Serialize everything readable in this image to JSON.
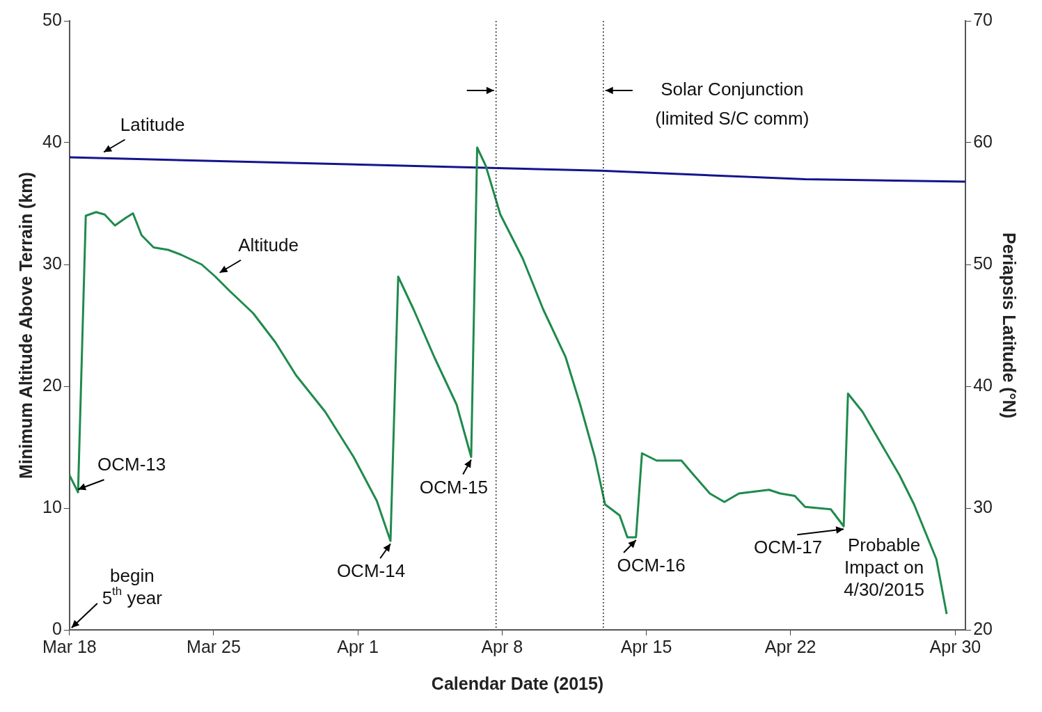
{
  "chart_data": {
    "type": "line",
    "xlabel": "Calendar Date (2015)",
    "ylabel": "Minimum Altitude Above Terrain (km)",
    "y2label": "Periapsis Latitude (°N)",
    "xlim": [
      "2015-03-18",
      "2015-04-30T12:00"
    ],
    "xticks": [
      {
        "value": "2015-03-18",
        "label": "Mar 18"
      },
      {
        "value": "2015-03-25",
        "label": "Mar 25"
      },
      {
        "value": "2015-04-01",
        "label": "Apr 1"
      },
      {
        "value": "2015-04-08",
        "label": "Apr 8"
      },
      {
        "value": "2015-04-15",
        "label": "Apr 15"
      },
      {
        "value": "2015-04-22",
        "label": "Apr 22"
      },
      {
        "value": "2015-04-30",
        "label": "Apr 30"
      }
    ],
    "ylim": [
      0,
      50
    ],
    "yticks": [
      0,
      10,
      20,
      30,
      40,
      50
    ],
    "y2lim": [
      20,
      70
    ],
    "y2ticks": [
      20,
      30,
      40,
      50,
      60,
      70
    ],
    "grid": false,
    "legend": false,
    "marker": "none",
    "line_style": "solid",
    "series": [
      {
        "color": "#1f8a4c",
        "x": [
          "2015-03-18T00:00",
          "2015-03-18T10:00",
          "2015-03-18T19:00",
          "2015-03-19T07:00",
          "2015-03-19T17:00",
          "2015-03-20T05:00",
          "2015-03-20T17:00",
          "2015-03-21T02:00",
          "2015-03-21T12:00",
          "2015-03-22T02:00",
          "2015-03-22T19:00",
          "2015-03-23T10:00",
          "2015-03-24T10:00",
          "2015-03-25T02:00",
          "2015-03-25T19:00",
          "2015-03-26T22:00",
          "2015-03-28T00:00",
          "2015-03-29T00:00",
          "2015-03-30T10:00",
          "2015-03-31T19:00",
          "2015-04-01T22:00",
          "2015-04-02T14:00",
          "2015-04-02T23:00",
          "2015-04-03T17:00",
          "2015-04-04T17:00",
          "2015-04-05T19:00",
          "2015-04-06T12:00",
          "2015-04-06T19:00",
          "2015-04-07T05:00",
          "2015-04-07T22:00",
          "2015-04-09T00:00",
          "2015-04-10T00:00",
          "2015-04-11T02:00",
          "2015-04-11T19:00",
          "2015-04-12T12:00",
          "2015-04-13T00:00",
          "2015-04-13T17:00",
          "2015-04-14T02:00",
          "2015-04-14T12:00",
          "2015-04-14T19:00",
          "2015-04-15T12:00",
          "2015-04-16T17:00",
          "2015-04-17T05:00",
          "2015-04-18T02:00",
          "2015-04-18T19:00",
          "2015-04-19T12:00",
          "2015-04-20T23:00",
          "2015-04-21T12:00",
          "2015-04-22T05:00",
          "2015-04-22T17:00",
          "2015-04-23T23:00",
          "2015-04-24T14:00",
          "2015-04-24T19:00",
          "2015-04-25T12:00",
          "2015-04-26T07:00",
          "2015-04-27T07:00",
          "2015-04-28T00:00",
          "2015-04-29T02:00",
          "2015-04-29T14:00"
        ],
        "values": [
          12.7,
          11.3,
          34.0,
          34.3,
          34.1,
          33.2,
          33.8,
          34.2,
          32.4,
          31.4,
          31.2,
          30.8,
          30.0,
          29.0,
          27.8,
          26.0,
          23.6,
          20.9,
          17.9,
          14.2,
          10.6,
          7.3,
          29.0,
          26.3,
          22.4,
          18.5,
          14.2,
          39.6,
          38.1,
          34.1,
          30.5,
          26.3,
          22.4,
          18.5,
          14.2,
          10.3,
          9.4,
          7.6,
          7.6,
          14.5,
          13.9,
          13.9,
          12.9,
          11.2,
          10.5,
          11.2,
          11.5,
          11.2,
          11.0,
          10.1,
          9.9,
          8.5,
          19.4,
          17.9,
          15.6,
          12.7,
          10.3,
          5.8,
          1.3
        ]
      },
      {
        "color": "#14148c",
        "axis": "y2",
        "x": [
          "2015-03-18T00:00",
          "2015-04-12T19:00",
          "2015-04-22T17:00",
          "2015-04-30T12:00"
        ],
        "values": [
          58.8,
          57.7,
          57.0,
          56.8
        ]
      }
    ],
    "ref_lines": [
      {
        "axis": "x",
        "value": "2015-04-07T17:00",
        "line_style": "dotted"
      },
      {
        "axis": "x",
        "value": "2015-04-12T22:00",
        "label": "Solar Conjunction (limited S/C comm)",
        "line_style": "dotted"
      }
    ],
    "annotations": [
      {
        "text": "Latitude",
        "x": "2015-03-19T16:00",
        "y": 39.0
      },
      {
        "text": "Altitude",
        "x": "2015-03-25T07:00",
        "y": 29.1
      },
      {
        "text": "OCM-13",
        "x": "2015-03-18T10:00",
        "y": 11.3
      },
      {
        "text": "OCM-14",
        "x": "2015-04-02T14:00",
        "y": 7.3
      },
      {
        "text": "OCM-15",
        "x": "2015-04-06T12:00",
        "y": 14.2
      },
      {
        "text": "OCM-16",
        "x": "2015-04-14T12:00",
        "y": 7.6
      },
      {
        "text": "OCM-17",
        "x": "2015-04-24T14:00",
        "y": 8.5
      },
      {
        "text": "Probable Impact on 4/30/2015",
        "x": "2015-04-29T14:00",
        "y": 1.3
      },
      "begin 5$^{th}$ year"
    ]
  }
}
